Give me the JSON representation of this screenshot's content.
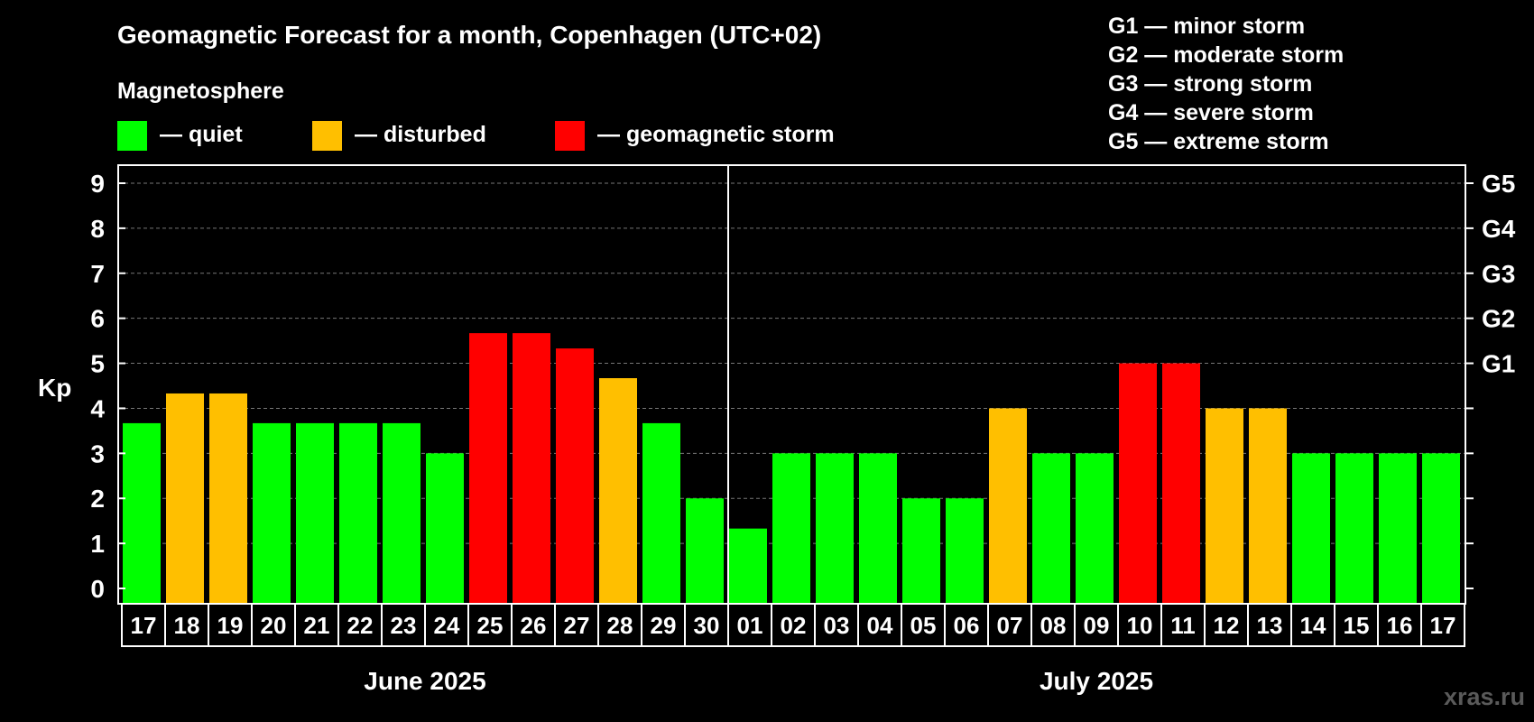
{
  "chart_data": {
    "type": "bar",
    "title": "Geomagnetic Forecast for a month, Copenhagen (UTC+02)",
    "legend": {
      "heading": "Magnetosphere",
      "items": [
        {
          "label": "— quiet",
          "color": "#00ff00"
        },
        {
          "label": "— disturbed",
          "color": "#ffbf00"
        },
        {
          "label": "— geomagnetic storm",
          "color": "#ff0000"
        }
      ]
    },
    "storm_scale": [
      "G1 — minor storm",
      "G2 — moderate storm",
      "G3 — strong storm",
      "G4 — severe storm",
      "G5 — extreme storm"
    ],
    "ylabel": "Kp",
    "ylim": [
      0,
      9
    ],
    "y_ticks": [
      "0",
      "1",
      "2",
      "3",
      "4",
      "5",
      "6",
      "7",
      "8",
      "9"
    ],
    "right_axis_labels": [
      {
        "kp": 5,
        "label": "G1"
      },
      {
        "kp": 6,
        "label": "G2"
      },
      {
        "kp": 7,
        "label": "G3"
      },
      {
        "kp": 8,
        "label": "G4"
      },
      {
        "kp": 9,
        "label": "G5"
      }
    ],
    "categories": [
      "17",
      "18",
      "19",
      "20",
      "21",
      "22",
      "23",
      "24",
      "25",
      "26",
      "27",
      "28",
      "29",
      "30",
      "01",
      "02",
      "03",
      "04",
      "05",
      "06",
      "07",
      "08",
      "09",
      "10",
      "11",
      "12",
      "13",
      "14",
      "15",
      "16",
      "17"
    ],
    "values": [
      3.67,
      4.33,
      4.33,
      3.67,
      3.67,
      3.67,
      3.67,
      3.0,
      5.67,
      5.67,
      5.33,
      4.67,
      3.67,
      2.0,
      1.33,
      3.0,
      3.0,
      3.0,
      2.0,
      2.0,
      4.0,
      3.0,
      3.0,
      5.0,
      5.0,
      4.0,
      4.0,
      3.0,
      3.0,
      3.0,
      3.0
    ],
    "levels": [
      "quiet",
      "disturbed",
      "disturbed",
      "quiet",
      "quiet",
      "quiet",
      "quiet",
      "quiet",
      "storm",
      "storm",
      "storm",
      "disturbed",
      "quiet",
      "quiet",
      "quiet",
      "quiet",
      "quiet",
      "quiet",
      "quiet",
      "quiet",
      "disturbed",
      "quiet",
      "quiet",
      "storm",
      "storm",
      "disturbed",
      "disturbed",
      "quiet",
      "quiet",
      "quiet",
      "quiet"
    ],
    "level_colors": {
      "quiet": "#00ff00",
      "disturbed": "#ffbf00",
      "storm": "#ff0000"
    },
    "months": [
      {
        "label": "June 2025",
        "count": 14
      },
      {
        "label": "July 2025",
        "count": 17
      }
    ],
    "grid": true,
    "watermark": "xras.ru"
  }
}
